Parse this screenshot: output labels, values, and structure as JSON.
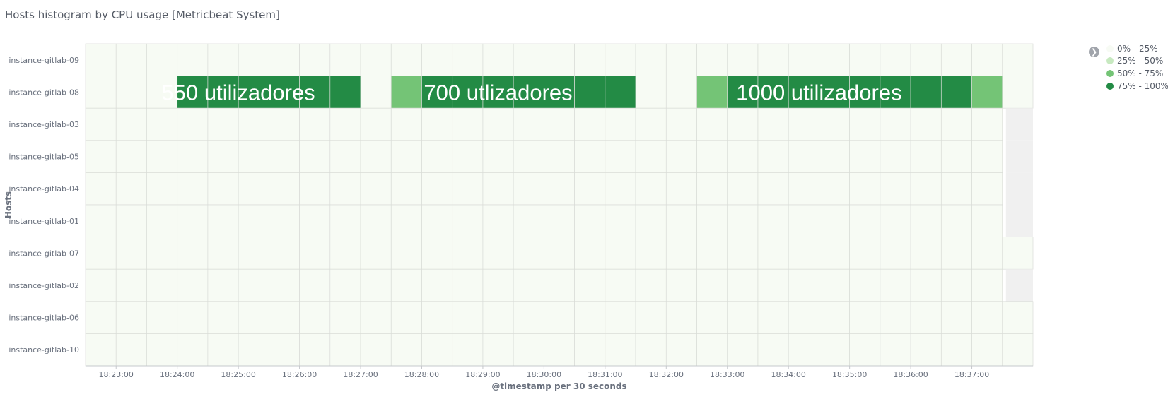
{
  "panel": {
    "title": "Hosts histogram by CPU usage [Metricbeat System]"
  },
  "legend": {
    "items": [
      {
        "label": "0% - 25%",
        "color": "#f7fbf4"
      },
      {
        "label": "25% - 50%",
        "color": "#c7e9c0"
      },
      {
        "label": "50% - 75%",
        "color": "#74c476"
      },
      {
        "label": "75% - 100%",
        "color": "#238b45"
      }
    ]
  },
  "annotations": [
    {
      "text": "550 utilizadores",
      "host": "instance-gitlab-08",
      "start": "18:23:30",
      "end": "18:26:30"
    },
    {
      "text": "700 utlizadores",
      "host": "instance-gitlab-08",
      "start": "18:27:30",
      "end": "18:31:00"
    },
    {
      "text": "1000 utilizadores",
      "host": "instance-gitlab-08",
      "start": "18:32:30",
      "end": "18:36:30"
    }
  ],
  "chart_data": {
    "type": "heatmap",
    "title": "Hosts histogram by CPU usage [Metricbeat System]",
    "xlabel": "@timestamp per 30 seconds",
    "ylabel": "Hosts",
    "x_bucket_starts": [
      "18:22:30",
      "18:23:00",
      "18:23:30",
      "18:24:00",
      "18:24:30",
      "18:25:00",
      "18:25:30",
      "18:26:00",
      "18:26:30",
      "18:27:00",
      "18:27:30",
      "18:28:00",
      "18:28:30",
      "18:29:00",
      "18:29:30",
      "18:30:00",
      "18:30:30",
      "18:31:00",
      "18:31:30",
      "18:32:00",
      "18:32:30",
      "18:33:00",
      "18:33:30",
      "18:34:00",
      "18:34:30",
      "18:35:00",
      "18:35:30",
      "18:36:00",
      "18:36:30",
      "18:37:00",
      "18:37:30"
    ],
    "x_ticks": [
      "18:23:00",
      "18:24:00",
      "18:25:00",
      "18:26:00",
      "18:27:00",
      "18:28:00",
      "18:29:00",
      "18:30:00",
      "18:31:00",
      "18:32:00",
      "18:33:00",
      "18:34:00",
      "18:35:00",
      "18:36:00",
      "18:37:00"
    ],
    "y_categories": [
      "instance-gitlab-09",
      "instance-gitlab-08",
      "instance-gitlab-03",
      "instance-gitlab-05",
      "instance-gitlab-04",
      "instance-gitlab-01",
      "instance-gitlab-07",
      "instance-gitlab-02",
      "instance-gitlab-06",
      "instance-gitlab-10"
    ],
    "color_ranges": [
      "0% - 25%",
      "25% - 50%",
      "50% - 75%",
      "75% - 100%"
    ],
    "series": [
      {
        "name": "instance-gitlab-09",
        "values": [
          0,
          0,
          0,
          0,
          0,
          0,
          0,
          0,
          0,
          0,
          0,
          0,
          0,
          0,
          0,
          0,
          0,
          0,
          0,
          0,
          0,
          0,
          0,
          0,
          0,
          0,
          0,
          0,
          0,
          0,
          0
        ]
      },
      {
        "name": "instance-gitlab-08",
        "values": [
          0,
          0,
          0,
          3,
          3,
          3,
          3,
          3,
          3,
          0,
          2,
          3,
          3,
          3,
          3,
          3,
          3,
          3,
          0,
          0,
          2,
          3,
          3,
          3,
          3,
          3,
          3,
          3,
          3,
          2,
          0
        ]
      },
      {
        "name": "instance-gitlab-03",
        "values": [
          0,
          0,
          0,
          0,
          0,
          0,
          0,
          0,
          0,
          0,
          0,
          0,
          0,
          0,
          0,
          0,
          0,
          0,
          0,
          0,
          0,
          0,
          0,
          0,
          0,
          0,
          0,
          0,
          0,
          0,
          null
        ]
      },
      {
        "name": "instance-gitlab-05",
        "values": [
          0,
          0,
          0,
          0,
          0,
          0,
          0,
          0,
          0,
          0,
          0,
          0,
          0,
          0,
          0,
          0,
          0,
          0,
          0,
          0,
          0,
          0,
          0,
          0,
          0,
          0,
          0,
          0,
          0,
          0,
          null
        ]
      },
      {
        "name": "instance-gitlab-04",
        "values": [
          0,
          0,
          0,
          0,
          0,
          0,
          0,
          0,
          0,
          0,
          0,
          0,
          0,
          0,
          0,
          0,
          0,
          0,
          0,
          0,
          0,
          0,
          0,
          0,
          0,
          0,
          0,
          0,
          0,
          0,
          null
        ]
      },
      {
        "name": "instance-gitlab-01",
        "values": [
          0,
          0,
          0,
          0,
          0,
          0,
          0,
          0,
          0,
          0,
          0,
          0,
          0,
          0,
          0,
          0,
          0,
          0,
          0,
          0,
          0,
          0,
          0,
          0,
          0,
          0,
          0,
          0,
          0,
          0,
          null
        ]
      },
      {
        "name": "instance-gitlab-07",
        "values": [
          0,
          0,
          0,
          0,
          0,
          0,
          0,
          0,
          0,
          0,
          0,
          0,
          0,
          0,
          0,
          0,
          0,
          0,
          0,
          0,
          0,
          0,
          0,
          0,
          0,
          0,
          0,
          0,
          0,
          0,
          0
        ]
      },
      {
        "name": "instance-gitlab-02",
        "values": [
          0,
          0,
          0,
          0,
          0,
          0,
          0,
          0,
          0,
          0,
          0,
          0,
          0,
          0,
          0,
          0,
          0,
          0,
          0,
          0,
          0,
          0,
          0,
          0,
          0,
          0,
          0,
          0,
          0,
          0,
          null
        ]
      },
      {
        "name": "instance-gitlab-06",
        "values": [
          0,
          0,
          0,
          0,
          0,
          0,
          0,
          0,
          0,
          0,
          0,
          0,
          0,
          0,
          0,
          0,
          0,
          0,
          0,
          0,
          0,
          0,
          0,
          0,
          0,
          0,
          0,
          0,
          0,
          0,
          0
        ]
      },
      {
        "name": "instance-gitlab-10",
        "values": [
          0,
          0,
          0,
          0,
          0,
          0,
          0,
          0,
          0,
          0,
          0,
          0,
          0,
          0,
          0,
          0,
          0,
          0,
          0,
          0,
          0,
          0,
          0,
          0,
          0,
          0,
          0,
          0,
          0,
          0,
          0
        ]
      }
    ],
    "legend_position": "right",
    "grid": true
  }
}
